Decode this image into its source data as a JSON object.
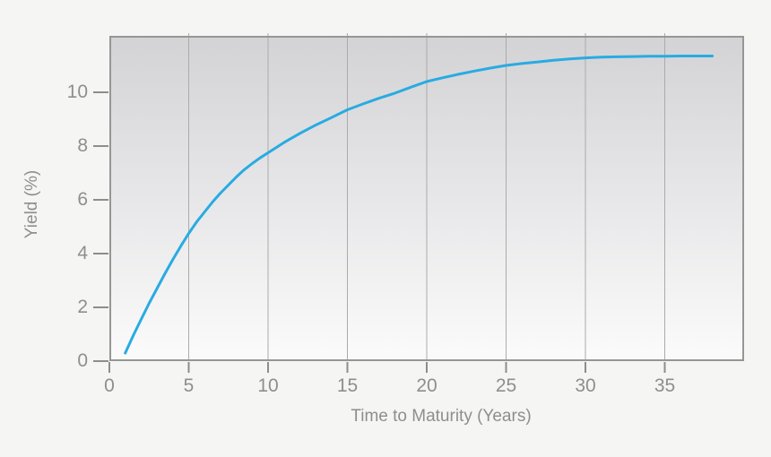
{
  "theme": {
    "page_bg": "#f5f5f4",
    "plot_bg_top": "#d3d3d5",
    "plot_bg_mid": "#e7e7e9",
    "plot_bg_bottom": "#fbfbfb",
    "border_color": "#969696",
    "grid_color": "#ababab",
    "tick_color": "#8d8d8d",
    "label_color": "#8e8e8e",
    "curve_color": "#29abe2"
  },
  "chart_data": {
    "type": "line",
    "xlabel": "Time to Maturity (Years)",
    "ylabel": "Yield (%)",
    "xlim": [
      0,
      40
    ],
    "ylim": [
      0,
      12.1
    ],
    "x_ticks": {
      "values": [
        0,
        5,
        10,
        15,
        20,
        25,
        30,
        35
      ],
      "labels": [
        "0",
        "5",
        "10",
        "15",
        "20",
        "25",
        "30",
        "35"
      ]
    },
    "y_ticks": {
      "values": [
        0,
        2,
        4,
        6,
        8,
        10
      ],
      "labels": [
        "0",
        "2",
        "4",
        "6",
        "8",
        "10"
      ]
    },
    "grid": "vertical-only",
    "legend": "none",
    "series": [
      {
        "name": "yield-curve",
        "color": "#29abe2",
        "x": [
          1,
          1.5,
          2,
          2.5,
          3,
          3.5,
          4,
          4.5,
          5,
          5.5,
          6,
          6.5,
          7,
          7.5,
          8,
          8.5,
          9,
          9.5,
          10,
          11,
          12,
          13,
          14,
          15,
          16,
          17,
          18,
          19,
          20,
          21,
          22,
          23,
          24,
          25,
          26,
          27,
          28,
          29,
          30,
          31,
          32,
          33,
          34,
          35,
          36,
          37,
          38
        ],
        "y": [
          0.3,
          0.95,
          1.55,
          2.15,
          2.7,
          3.25,
          3.78,
          4.28,
          4.75,
          5.18,
          5.55,
          5.92,
          6.25,
          6.55,
          6.85,
          7.12,
          7.35,
          7.56,
          7.75,
          8.13,
          8.47,
          8.78,
          9.06,
          9.35,
          9.57,
          9.78,
          9.97,
          10.19,
          10.4,
          10.54,
          10.67,
          10.79,
          10.9,
          11.0,
          11.07,
          11.13,
          11.19,
          11.24,
          11.28,
          11.31,
          11.32,
          11.33,
          11.34,
          11.34,
          11.35,
          11.35,
          11.35
        ]
      }
    ]
  }
}
